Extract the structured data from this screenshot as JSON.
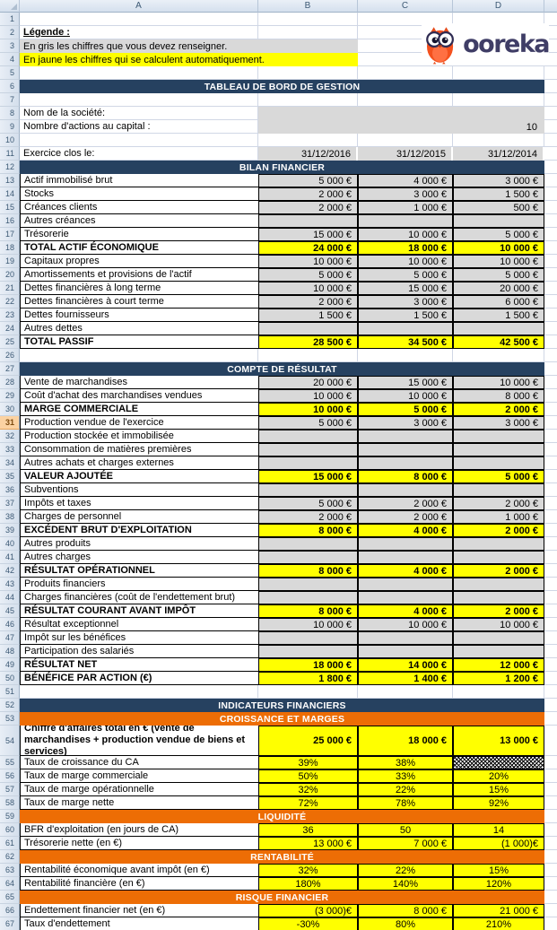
{
  "app": {
    "kind": "excel-spreadsheet",
    "title": "Tableau de bord de gestion"
  },
  "colors": {
    "navy": "#264160",
    "orange": "#ED6D05",
    "yellow": "#FFFF00",
    "gray": "#D9D9D9",
    "grid": "#D0D7E5",
    "active_row": "#FBD2A2",
    "logo_orange": "#F4511E",
    "logo_text": "#3F3D66"
  },
  "column_headers": [
    "A",
    "B",
    "C",
    "D"
  ],
  "logo": {
    "brand": "ooreka"
  },
  "selection": {
    "active_row": 31
  },
  "rows": [
    {
      "n": 1,
      "type": "blank"
    },
    {
      "n": 2,
      "type": "legend_title",
      "label": "Légende :"
    },
    {
      "n": 3,
      "type": "legend",
      "fill": "gray",
      "label": "En gris les chiffres que vous devez renseigner."
    },
    {
      "n": 4,
      "type": "legend",
      "fill": "yellow",
      "label": "En jaune les chiffres qui se calculent automatiquement."
    },
    {
      "n": 5,
      "type": "blank"
    },
    {
      "n": 6,
      "type": "banner",
      "color": "navy",
      "label": "TABLEAU DE BORD DE GESTION"
    },
    {
      "n": 7,
      "type": "blank"
    },
    {
      "n": 8,
      "type": "info",
      "label": "Nom de la société:",
      "value": ""
    },
    {
      "n": 9,
      "type": "info",
      "label": "Nombre d'actions au capital :",
      "value": "10"
    },
    {
      "n": 10,
      "type": "blank"
    },
    {
      "n": 11,
      "type": "dates",
      "label": "Exercice clos le:",
      "values": [
        "31/12/2016",
        "31/12/2015",
        "31/12/2014"
      ]
    },
    {
      "n": 12,
      "type": "banner",
      "color": "navy",
      "label": "BILAN FINANCIER"
    },
    {
      "n": 13,
      "type": "data",
      "fill": "gray",
      "label": "Actif immobilisé brut",
      "values": [
        "5 000 €",
        "4 000 €",
        "3 000 €"
      ]
    },
    {
      "n": 14,
      "type": "data",
      "fill": "gray",
      "label": "Stocks",
      "values": [
        "2 000 €",
        "3 000 €",
        "1 500 €"
      ]
    },
    {
      "n": 15,
      "type": "data",
      "fill": "gray",
      "label": "Créances clients",
      "values": [
        "2 000 €",
        "1 000 €",
        "500 €"
      ]
    },
    {
      "n": 16,
      "type": "data",
      "fill": "gray",
      "label": "Autres créances",
      "values": [
        "",
        "",
        ""
      ]
    },
    {
      "n": 17,
      "type": "data",
      "fill": "gray",
      "label": "Trésorerie",
      "values": [
        "15 000 €",
        "10 000 €",
        "5 000 €"
      ]
    },
    {
      "n": 18,
      "type": "data",
      "fill": "yellow",
      "bold": true,
      "label": "TOTAL ACTIF ÉCONOMIQUE",
      "values": [
        "24 000 €",
        "18 000 €",
        "10 000 €"
      ]
    },
    {
      "n": 19,
      "type": "data",
      "fill": "gray",
      "label": "Capitaux propres",
      "values": [
        "10 000 €",
        "10 000 €",
        "10 000 €"
      ]
    },
    {
      "n": 20,
      "type": "data",
      "fill": "gray",
      "label": "Amortissements et provisions de l'actif",
      "values": [
        "5 000 €",
        "5 000 €",
        "5 000 €"
      ]
    },
    {
      "n": 21,
      "type": "data",
      "fill": "gray",
      "label": "Dettes financières à long terme",
      "values": [
        "10 000 €",
        "15 000 €",
        "20 000 €"
      ]
    },
    {
      "n": 22,
      "type": "data",
      "fill": "gray",
      "label": "Dettes financières à court terme",
      "values": [
        "2 000 €",
        "3 000 €",
        "6 000 €"
      ]
    },
    {
      "n": 23,
      "type": "data",
      "fill": "gray",
      "label": "Dettes fournisseurs",
      "values": [
        "1 500 €",
        "1 500 €",
        "1 500 €"
      ]
    },
    {
      "n": 24,
      "type": "data",
      "fill": "gray",
      "label": "Autres dettes",
      "values": [
        "",
        "",
        ""
      ]
    },
    {
      "n": 25,
      "type": "data",
      "fill": "yellow",
      "bold": true,
      "label": "TOTAL PASSIF",
      "values": [
        "28 500 €",
        "34 500 €",
        "42 500 €"
      ]
    },
    {
      "n": 26,
      "type": "blank"
    },
    {
      "n": 27,
      "type": "banner",
      "color": "navy",
      "label": "COMPTE DE RÉSULTAT"
    },
    {
      "n": 28,
      "type": "data",
      "fill": "gray",
      "label": "Vente de marchandises",
      "values": [
        "20 000 €",
        "15 000 €",
        "10 000 €"
      ]
    },
    {
      "n": 29,
      "type": "data",
      "fill": "gray",
      "label": "Coût d'achat des marchandises vendues",
      "values": [
        "10 000 €",
        "10 000 €",
        "8 000 €"
      ]
    },
    {
      "n": 30,
      "type": "data",
      "fill": "yellow",
      "bold": true,
      "label": "MARGE COMMERCIALE",
      "values": [
        "10 000 €",
        "5 000 €",
        "2 000 €"
      ]
    },
    {
      "n": 31,
      "type": "data",
      "fill": "gray",
      "label": "Production vendue de l'exercice",
      "values": [
        "5 000 €",
        "3 000 €",
        "3 000 €"
      ]
    },
    {
      "n": 32,
      "type": "data",
      "fill": "gray",
      "label": "Production stockée et immobilisée",
      "values": [
        "",
        "",
        ""
      ]
    },
    {
      "n": 33,
      "type": "data",
      "fill": "gray",
      "label": "Consommation de matières premières",
      "values": [
        "",
        "",
        ""
      ]
    },
    {
      "n": 34,
      "type": "data",
      "fill": "gray",
      "label": "Autres achats et charges externes",
      "values": [
        "",
        "",
        ""
      ]
    },
    {
      "n": 35,
      "type": "data",
      "fill": "yellow",
      "bold": true,
      "label": "VALEUR AJOUTÉE",
      "values": [
        "15 000 €",
        "8 000 €",
        "5 000 €"
      ]
    },
    {
      "n": 36,
      "type": "data",
      "fill": "gray",
      "label": "Subventions",
      "values": [
        "",
        "",
        ""
      ]
    },
    {
      "n": 37,
      "type": "data",
      "fill": "gray",
      "label": "Impôts et taxes",
      "values": [
        "5 000 €",
        "2 000 €",
        "2 000 €"
      ]
    },
    {
      "n": 38,
      "type": "data",
      "fill": "gray",
      "label": "Charges de personnel",
      "values": [
        "2 000 €",
        "2 000 €",
        "1 000 €"
      ]
    },
    {
      "n": 39,
      "type": "data",
      "fill": "yellow",
      "bold": true,
      "label": "EXCÉDENT BRUT D'EXPLOITATION",
      "values": [
        "8 000 €",
        "4 000 €",
        "2 000 €"
      ]
    },
    {
      "n": 40,
      "type": "data",
      "fill": "gray",
      "label": "Autres produits",
      "values": [
        "",
        "",
        ""
      ]
    },
    {
      "n": 41,
      "type": "data",
      "fill": "gray",
      "label": "Autres charges",
      "values": [
        "",
        "",
        ""
      ]
    },
    {
      "n": 42,
      "type": "data",
      "fill": "yellow",
      "bold": true,
      "label": "RÉSULTAT OPÉRATIONNEL",
      "values": [
        "8 000 €",
        "4 000 €",
        "2 000 €"
      ]
    },
    {
      "n": 43,
      "type": "data",
      "fill": "gray",
      "label": "Produits financiers",
      "values": [
        "",
        "",
        ""
      ]
    },
    {
      "n": 44,
      "type": "data",
      "fill": "gray",
      "label": "Charges financières (coût de l'endettement brut)",
      "values": [
        "",
        "",
        ""
      ]
    },
    {
      "n": 45,
      "type": "data",
      "fill": "yellow",
      "bold": true,
      "label": "RÉSULTAT COURANT AVANT IMPÔT",
      "values": [
        "8 000 €",
        "4 000 €",
        "2 000 €"
      ]
    },
    {
      "n": 46,
      "type": "data",
      "fill": "gray",
      "label": "Résultat exceptionnel",
      "values": [
        "10 000 €",
        "10 000 €",
        "10 000 €"
      ]
    },
    {
      "n": 47,
      "type": "data",
      "fill": "gray",
      "label": "Impôt sur les bénéfices",
      "values": [
        "",
        "",
        ""
      ]
    },
    {
      "n": 48,
      "type": "data",
      "fill": "gray",
      "label": "Participation des salariés",
      "values": [
        "",
        "",
        ""
      ]
    },
    {
      "n": 49,
      "type": "data",
      "fill": "yellow",
      "bold": true,
      "label": "RÉSULTAT NET",
      "values": [
        "18 000 €",
        "14 000 €",
        "12 000 €"
      ]
    },
    {
      "n": 50,
      "type": "data",
      "fill": "yellow",
      "bold": true,
      "label": "BÉNÉFICE PAR ACTION (€)",
      "values": [
        "1 800 €",
        "1 400 €",
        "1 200 €"
      ]
    },
    {
      "n": 51,
      "type": "blank"
    },
    {
      "n": 52,
      "type": "banner",
      "color": "navy",
      "label": "INDICATEURS FINANCIERS"
    },
    {
      "n": 53,
      "type": "banner",
      "color": "orange",
      "label": "CROISSANCE ET MARGES"
    },
    {
      "n": 54,
      "type": "data",
      "fill": "yellow",
      "bold": true,
      "tall": true,
      "label": "Chiffre d'affaires total en € (vente de marchandises + production vendue de biens et services)",
      "values": [
        "25 000 €",
        "18 000 €",
        "13 000 €"
      ]
    },
    {
      "n": 55,
      "type": "data",
      "fill": "yellow",
      "align": "center",
      "label": "Taux de croissance du CA",
      "values": [
        "39%",
        "38%",
        ""
      ],
      "hatch": [
        2
      ]
    },
    {
      "n": 56,
      "type": "data",
      "fill": "yellow",
      "align": "center",
      "label": "Taux de marge commerciale",
      "values": [
        "50%",
        "33%",
        "20%"
      ]
    },
    {
      "n": 57,
      "type": "data",
      "fill": "yellow",
      "align": "center",
      "label": "Taux de marge opérationnelle",
      "values": [
        "32%",
        "22%",
        "15%"
      ]
    },
    {
      "n": 58,
      "type": "data",
      "fill": "yellow",
      "align": "center",
      "label": "Taux de marge nette",
      "values": [
        "72%",
        "78%",
        "92%"
      ]
    },
    {
      "n": 59,
      "type": "banner",
      "color": "orange",
      "label": "LIQUIDITÉ"
    },
    {
      "n": 60,
      "type": "data",
      "fill": "yellow",
      "align": "center",
      "label": "BFR d'exploitation (en jours de CA)",
      "values": [
        "36",
        "50",
        "14"
      ]
    },
    {
      "n": 61,
      "type": "data",
      "fill": "yellow",
      "label": "Trésorerie nette (en €)",
      "values": [
        "13 000 €",
        "7 000 €",
        "(1 000)€"
      ]
    },
    {
      "n": 62,
      "type": "banner",
      "color": "orange",
      "label": "RENTABILITÉ"
    },
    {
      "n": 63,
      "type": "data",
      "fill": "yellow",
      "align": "center",
      "label": "Rentabilité économique avant impôt (en €)",
      "values": [
        "32%",
        "22%",
        "15%"
      ]
    },
    {
      "n": 64,
      "type": "data",
      "fill": "yellow",
      "align": "center",
      "label": "Rentabilité financière (en €)",
      "values": [
        "180%",
        "140%",
        "120%"
      ]
    },
    {
      "n": 65,
      "type": "banner",
      "color": "orange",
      "label": "RISQUE FINANCIER"
    },
    {
      "n": 66,
      "type": "data",
      "fill": "yellow",
      "label": "Endettement financier net (en €)",
      "values": [
        "(3 000)€",
        "8 000 €",
        "21 000 €"
      ]
    },
    {
      "n": 67,
      "type": "data",
      "fill": "yellow",
      "align": "center",
      "label": "Taux d'endettement",
      "values": [
        "-30%",
        "80%",
        "210%"
      ]
    }
  ]
}
